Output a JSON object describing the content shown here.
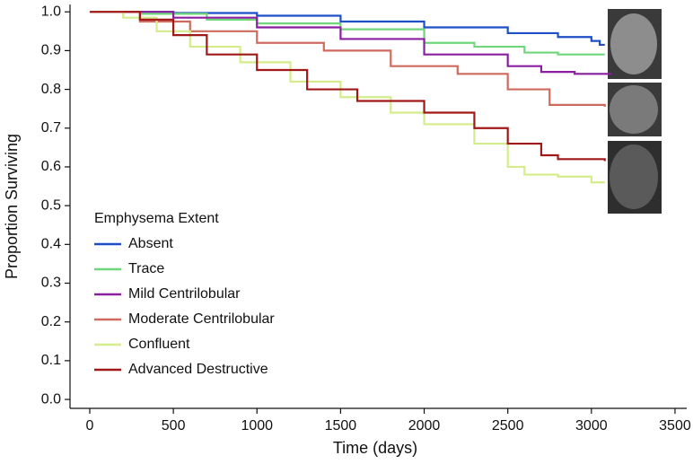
{
  "chart_data": {
    "type": "line",
    "drawstyle": "steps-post",
    "xlabel": "Time (days)",
    "ylabel": "Proportion Surviving",
    "legend_title": "Emphysema Extent",
    "legend": "lower left",
    "xlim": [
      -118,
      3570
    ],
    "ylim": [
      -0.023,
      1.019
    ],
    "xticks": [
      0,
      500,
      1000,
      1500,
      2000,
      2500,
      3000,
      3500
    ],
    "yticks": [
      {
        "value": 0,
        "label": "0.0"
      },
      0.1,
      0.2,
      0.3,
      0.4,
      0.5,
      0.6,
      0.7,
      0.8,
      0.9,
      {
        "value": 1,
        "label": "1.0"
      }
    ],
    "series": [
      {
        "name": "Absent",
        "color": "#1f4fc8",
        "x": [
          0,
          500,
          1000,
          1500,
          2000,
          2500,
          2800,
          3000,
          3050,
          3080
        ],
        "values": [
          1.0,
          0.997,
          0.99,
          0.975,
          0.96,
          0.945,
          0.935,
          0.925,
          0.915,
          0.915
        ]
      },
      {
        "name": "Trace",
        "color": "#6fd67a",
        "x": [
          0,
          300,
          700,
          1000,
          1500,
          2000,
          2300,
          2600,
          2800,
          3080
        ],
        "values": [
          1.0,
          0.995,
          0.98,
          0.97,
          0.955,
          0.92,
          0.91,
          0.895,
          0.89,
          0.89
        ]
      },
      {
        "name": "Mild Centrilobular",
        "color": "#8a1fa0",
        "x": [
          0,
          500,
          1000,
          1500,
          2000,
          2500,
          2700,
          2900,
          3120
        ],
        "values": [
          1.0,
          0.985,
          0.96,
          0.93,
          0.89,
          0.86,
          0.845,
          0.84,
          0.84
        ]
      },
      {
        "name": "Moderate Centrilobular",
        "color": "#cf6a5e",
        "x": [
          0,
          300,
          600,
          1000,
          1400,
          1800,
          2200,
          2500,
          2750,
          3080
        ],
        "values": [
          1.0,
          0.975,
          0.95,
          0.92,
          0.9,
          0.86,
          0.84,
          0.8,
          0.76,
          0.755
        ]
      },
      {
        "name": "Confluent",
        "color": "#d4ec8a",
        "x": [
          0,
          200,
          400,
          600,
          900,
          1200,
          1500,
          1800,
          2000,
          2300,
          2500,
          2600,
          2800,
          3000,
          3080
        ],
        "values": [
          1.0,
          0.985,
          0.95,
          0.91,
          0.87,
          0.82,
          0.78,
          0.74,
          0.71,
          0.66,
          0.6,
          0.58,
          0.575,
          0.56,
          0.56
        ]
      },
      {
        "name": "Advanced Destructive",
        "color": "#a01818",
        "x": [
          0,
          300,
          500,
          700,
          1000,
          1300,
          1600,
          2000,
          2300,
          2500,
          2700,
          2800,
          3080
        ],
        "values": [
          1.0,
          0.98,
          0.94,
          0.89,
          0.85,
          0.8,
          0.77,
          0.74,
          0.7,
          0.66,
          0.63,
          0.62,
          0.615
        ]
      }
    ]
  }
}
